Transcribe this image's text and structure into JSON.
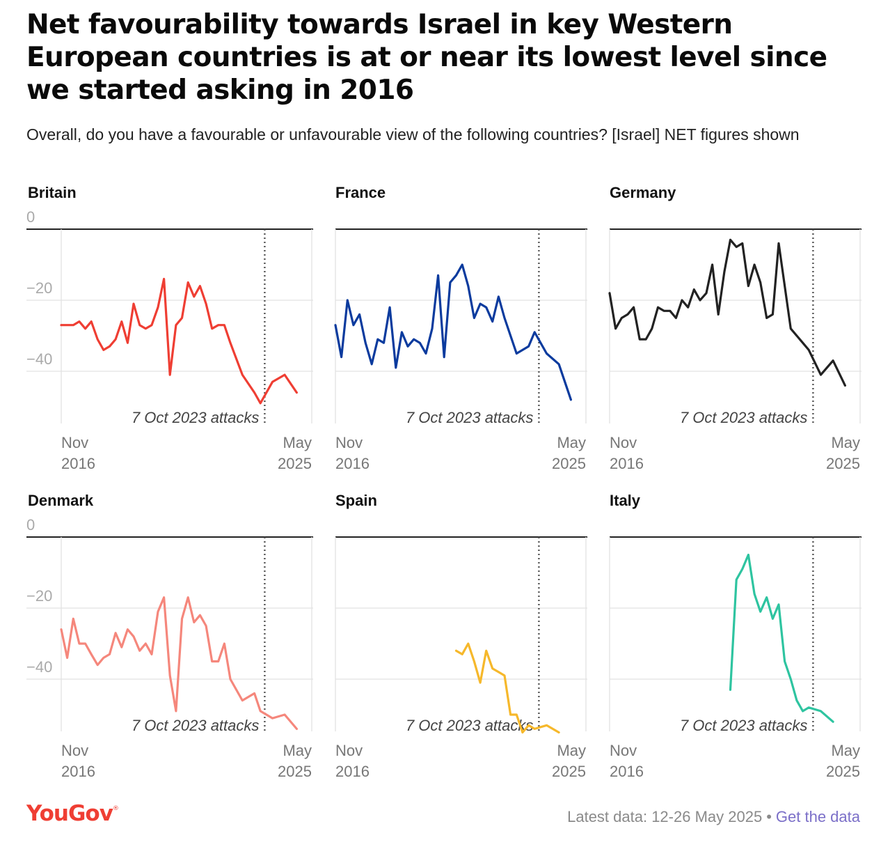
{
  "title": "Net favourability towards Israel in key Western European countries is at or near its lowest level since we started asking in 2016",
  "subtitle": "Overall, do you have a favourable or unfavourable view of the following countries? [Israel] NET figures shown",
  "footer": {
    "brand": "YouGov",
    "brand_mark": "®",
    "latest": "Latest data: 12-26 May 2025",
    "separator": "•",
    "link": "Get the data"
  },
  "chart_data": {
    "type": "line",
    "x_start": "2016-11",
    "x_end": "2025-05",
    "x_start_label": [
      "Nov",
      "2016"
    ],
    "x_end_label": [
      "May",
      "2025"
    ],
    "ylim": [
      -55,
      0
    ],
    "yticks": [
      "0",
      "−20",
      "−40"
    ],
    "grid": true,
    "annotation": {
      "label": "7 Oct 2023 attacks",
      "x": "2023-10"
    },
    "series": [
      {
        "name": "Britain",
        "color": "#ef3e33",
        "points": [
          [
            0.0,
            -27
          ],
          [
            0.024,
            -27
          ],
          [
            0.048,
            -27
          ],
          [
            0.072,
            -26
          ],
          [
            0.096,
            -28
          ],
          [
            0.12,
            -26
          ],
          [
            0.145,
            -31
          ],
          [
            0.169,
            -34
          ],
          [
            0.193,
            -33
          ],
          [
            0.217,
            -31
          ],
          [
            0.241,
            -26
          ],
          [
            0.265,
            -32
          ],
          [
            0.289,
            -21
          ],
          [
            0.313,
            -27
          ],
          [
            0.337,
            -28
          ],
          [
            0.361,
            -27
          ],
          [
            0.386,
            -22
          ],
          [
            0.41,
            -14
          ],
          [
            0.434,
            -41
          ],
          [
            0.458,
            -27
          ],
          [
            0.482,
            -25
          ],
          [
            0.506,
            -15
          ],
          [
            0.53,
            -19
          ],
          [
            0.554,
            -16
          ],
          [
            0.578,
            -21
          ],
          [
            0.602,
            -28
          ],
          [
            0.627,
            -27
          ],
          [
            0.651,
            -27
          ],
          [
            0.675,
            -32
          ],
          [
            0.723,
            -41
          ],
          [
            0.771,
            -46
          ],
          [
            0.795,
            -49
          ],
          [
            0.843,
            -43
          ],
          [
            0.892,
            -41
          ],
          [
            0.94,
            -46
          ]
        ]
      },
      {
        "name": "France",
        "color": "#0b3b9e",
        "points": [
          [
            0.0,
            -27
          ],
          [
            0.024,
            -36
          ],
          [
            0.048,
            -20
          ],
          [
            0.072,
            -27
          ],
          [
            0.096,
            -24
          ],
          [
            0.12,
            -32
          ],
          [
            0.145,
            -38
          ],
          [
            0.169,
            -31
          ],
          [
            0.193,
            -32
          ],
          [
            0.217,
            -22
          ],
          [
            0.241,
            -39
          ],
          [
            0.265,
            -29
          ],
          [
            0.289,
            -33
          ],
          [
            0.313,
            -31
          ],
          [
            0.337,
            -32
          ],
          [
            0.361,
            -35
          ],
          [
            0.386,
            -28
          ],
          [
            0.41,
            -13
          ],
          [
            0.434,
            -36
          ],
          [
            0.458,
            -15
          ],
          [
            0.482,
            -13
          ],
          [
            0.506,
            -10
          ],
          [
            0.53,
            -16
          ],
          [
            0.554,
            -25
          ],
          [
            0.578,
            -21
          ],
          [
            0.602,
            -22
          ],
          [
            0.627,
            -26
          ],
          [
            0.651,
            -19
          ],
          [
            0.675,
            -25
          ],
          [
            0.723,
            -35
          ],
          [
            0.771,
            -33
          ],
          [
            0.795,
            -29
          ],
          [
            0.843,
            -35
          ],
          [
            0.892,
            -38
          ],
          [
            0.94,
            -48
          ]
        ]
      },
      {
        "name": "Germany",
        "color": "#222222",
        "points": [
          [
            0.0,
            -18
          ],
          [
            0.024,
            -28
          ],
          [
            0.048,
            -25
          ],
          [
            0.072,
            -24
          ],
          [
            0.096,
            -22
          ],
          [
            0.12,
            -31
          ],
          [
            0.145,
            -31
          ],
          [
            0.169,
            -28
          ],
          [
            0.193,
            -22
          ],
          [
            0.217,
            -23
          ],
          [
            0.241,
            -23
          ],
          [
            0.265,
            -25
          ],
          [
            0.289,
            -20
          ],
          [
            0.313,
            -22
          ],
          [
            0.337,
            -17
          ],
          [
            0.361,
            -20
          ],
          [
            0.386,
            -18
          ],
          [
            0.41,
            -10
          ],
          [
            0.434,
            -24
          ],
          [
            0.458,
            -12
          ],
          [
            0.482,
            -3
          ],
          [
            0.506,
            -5
          ],
          [
            0.53,
            -4
          ],
          [
            0.554,
            -16
          ],
          [
            0.578,
            -10
          ],
          [
            0.602,
            -15
          ],
          [
            0.627,
            -25
          ],
          [
            0.651,
            -24
          ],
          [
            0.675,
            -4
          ],
          [
            0.723,
            -28
          ],
          [
            0.771,
            -32
          ],
          [
            0.795,
            -34
          ],
          [
            0.843,
            -41
          ],
          [
            0.892,
            -37
          ],
          [
            0.94,
            -44
          ]
        ]
      },
      {
        "name": "Denmark",
        "color": "#f5877c",
        "points": [
          [
            0.0,
            -26
          ],
          [
            0.024,
            -34
          ],
          [
            0.048,
            -23
          ],
          [
            0.072,
            -30
          ],
          [
            0.096,
            -30
          ],
          [
            0.12,
            -33
          ],
          [
            0.145,
            -36
          ],
          [
            0.169,
            -34
          ],
          [
            0.193,
            -33
          ],
          [
            0.217,
            -27
          ],
          [
            0.241,
            -31
          ],
          [
            0.265,
            -26
          ],
          [
            0.289,
            -28
          ],
          [
            0.313,
            -32
          ],
          [
            0.337,
            -30
          ],
          [
            0.361,
            -33
          ],
          [
            0.386,
            -21
          ],
          [
            0.41,
            -17
          ],
          [
            0.434,
            -39
          ],
          [
            0.458,
            -49
          ],
          [
            0.482,
            -23
          ],
          [
            0.506,
            -17
          ],
          [
            0.53,
            -24
          ],
          [
            0.554,
            -22
          ],
          [
            0.578,
            -25
          ],
          [
            0.602,
            -35
          ],
          [
            0.627,
            -35
          ],
          [
            0.651,
            -30
          ],
          [
            0.675,
            -40
          ],
          [
            0.723,
            -46
          ],
          [
            0.771,
            -44
          ],
          [
            0.795,
            -49
          ],
          [
            0.843,
            -51
          ],
          [
            0.892,
            -50
          ],
          [
            0.94,
            -54
          ]
        ]
      },
      {
        "name": "Spain",
        "color": "#f6b82b",
        "points": [
          [
            0.482,
            -32
          ],
          [
            0.506,
            -33
          ],
          [
            0.53,
            -30
          ],
          [
            0.554,
            -35
          ],
          [
            0.578,
            -41
          ],
          [
            0.602,
            -32
          ],
          [
            0.627,
            -37
          ],
          [
            0.651,
            -38
          ],
          [
            0.675,
            -39
          ],
          [
            0.699,
            -50
          ],
          [
            0.723,
            -50
          ],
          [
            0.747,
            -55
          ],
          [
            0.771,
            -53
          ],
          [
            0.795,
            -54
          ],
          [
            0.843,
            -53
          ],
          [
            0.892,
            -55
          ]
        ]
      },
      {
        "name": "Italy",
        "color": "#2ec4a0",
        "points": [
          [
            0.482,
            -43
          ],
          [
            0.506,
            -12
          ],
          [
            0.53,
            -9
          ],
          [
            0.554,
            -5
          ],
          [
            0.578,
            -16
          ],
          [
            0.602,
            -21
          ],
          [
            0.627,
            -17
          ],
          [
            0.651,
            -23
          ],
          [
            0.675,
            -19
          ],
          [
            0.699,
            -35
          ],
          [
            0.723,
            -40
          ],
          [
            0.747,
            -46
          ],
          [
            0.771,
            -49
          ],
          [
            0.795,
            -48
          ],
          [
            0.843,
            -49
          ],
          [
            0.892,
            -52
          ]
        ]
      }
    ]
  }
}
